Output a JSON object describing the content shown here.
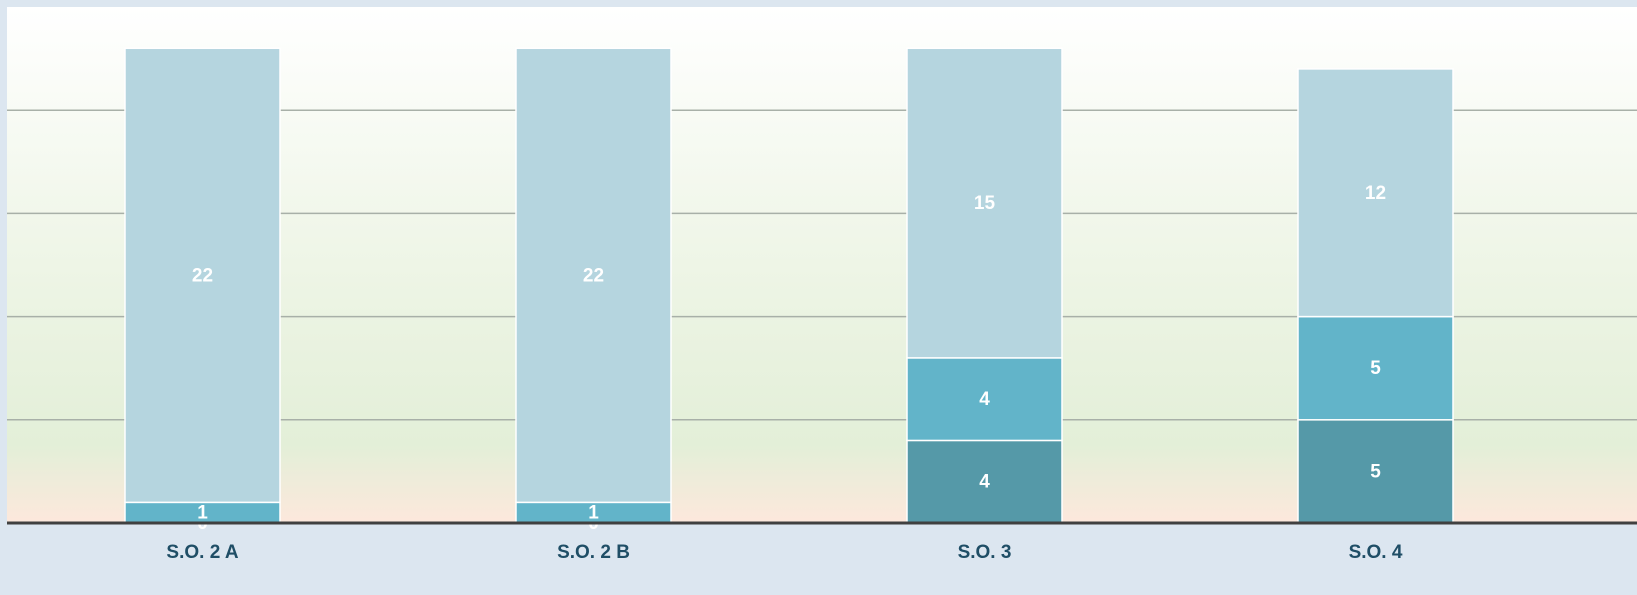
{
  "chart_data": {
    "type": "stacked_bar",
    "categories": [
      "S.O. 2 A",
      "S.O. 2 B",
      "S.O. 3",
      "S.O. 4"
    ],
    "series": [
      {
        "color": "#5599a8",
        "values": [
          0,
          0,
          4,
          5
        ]
      },
      {
        "color": "#62b4c9",
        "values": [
          1,
          1,
          4,
          5
        ]
      },
      {
        "color": "#b5d5df",
        "values": [
          22,
          22,
          15,
          12
        ]
      }
    ],
    "ylim": [
      0,
      25
    ],
    "yticks": [
      0,
      5,
      10,
      15,
      20
    ],
    "grid": true
  }
}
